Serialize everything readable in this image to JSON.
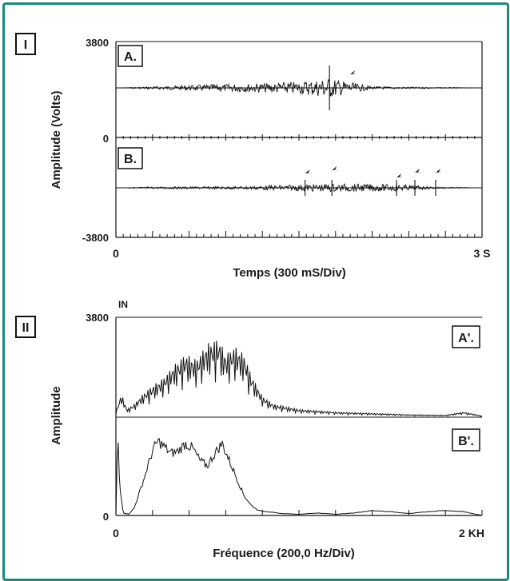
{
  "chart_data": [
    {
      "type": "line",
      "panel": "I",
      "xlabel": "Temps (300 mS/Div)",
      "ylabel": "Amplitude (Volts)",
      "x_ticks": [
        "0",
        "3 S"
      ],
      "xlim": [
        0,
        3
      ],
      "y_ticks": [
        "3800",
        "0",
        "-3800"
      ],
      "ylim": [
        -3800,
        3800
      ],
      "series": [
        {
          "name": "A.",
          "description_points": [
            {
              "t": 0.0,
              "amp": 0
            },
            {
              "t": 0.3,
              "amp": 200
            },
            {
              "t": 0.8,
              "amp": 500
            },
            {
              "t": 1.2,
              "amp": 700
            },
            {
              "t": 1.5,
              "amp": 900
            },
            {
              "t": 1.75,
              "amp": 1500
            },
            {
              "t": 1.9,
              "amp": 900
            },
            {
              "t": 2.1,
              "amp": 200
            },
            {
              "t": 3.0,
              "amp": 0
            }
          ],
          "markers_t": [
            1.92
          ]
        },
        {
          "name": "B.",
          "description_points": [
            {
              "t": 0.0,
              "amp": 0
            },
            {
              "t": 0.3,
              "amp": 150
            },
            {
              "t": 1.0,
              "amp": 200
            },
            {
              "t": 1.75,
              "amp": 600
            },
            {
              "t": 2.3,
              "amp": 500
            },
            {
              "t": 2.6,
              "amp": 150
            },
            {
              "t": 3.0,
              "amp": 0
            }
          ],
          "markers_t": [
            1.55,
            1.77,
            2.3,
            2.45,
            2.62
          ]
        }
      ]
    },
    {
      "type": "line",
      "panel": "II",
      "xlabel": "Fréquence (200,0 Hz/Div)",
      "ylabel": "Amplitude",
      "x_ticks": [
        "0",
        "2 KH"
      ],
      "xlim": [
        0,
        2000
      ],
      "y_ticks": [
        "3800",
        "0"
      ],
      "ylim": [
        0,
        3800
      ],
      "corner_label": "IN",
      "series": [
        {
          "name": "A'.",
          "points": [
            [
              0,
              200
            ],
            [
              30,
              900
            ],
            [
              60,
              300
            ],
            [
              100,
              500
            ],
            [
              150,
              900
            ],
            [
              200,
              1200
            ],
            [
              260,
              1500
            ],
            [
              320,
              2000
            ],
            [
              380,
              2400
            ],
            [
              440,
              2200
            ],
            [
              500,
              2800
            ],
            [
              560,
              3000
            ],
            [
              600,
              2400
            ],
            [
              650,
              2700
            ],
            [
              700,
              2400
            ],
            [
              740,
              1600
            ],
            [
              800,
              800
            ],
            [
              860,
              500
            ],
            [
              1000,
              300
            ],
            [
              1200,
              200
            ],
            [
              1400,
              150
            ],
            [
              1600,
              100
            ],
            [
              1800,
              80
            ],
            [
              1900,
              200
            ],
            [
              2000,
              50
            ]
          ]
        },
        {
          "name": "B'.",
          "points": [
            [
              0,
              0
            ],
            [
              10,
              3400
            ],
            [
              20,
              1200
            ],
            [
              40,
              100
            ],
            [
              70,
              50
            ],
            [
              100,
              300
            ],
            [
              150,
              1400
            ],
            [
              200,
              2600
            ],
            [
              230,
              3000
            ],
            [
              260,
              2800
            ],
            [
              300,
              2500
            ],
            [
              340,
              2600
            ],
            [
              380,
              2900
            ],
            [
              420,
              2700
            ],
            [
              460,
              2200
            ],
            [
              500,
              2000
            ],
            [
              540,
              2500
            ],
            [
              580,
              2900
            ],
            [
              620,
              2200
            ],
            [
              660,
              1500
            ],
            [
              700,
              800
            ],
            [
              740,
              400
            ],
            [
              780,
              200
            ],
            [
              830,
              150
            ],
            [
              900,
              80
            ],
            [
              1000,
              50
            ],
            [
              1100,
              100
            ],
            [
              1200,
              50
            ],
            [
              1300,
              100
            ],
            [
              1400,
              200
            ],
            [
              1500,
              150
            ],
            [
              1600,
              80
            ],
            [
              1700,
              150
            ],
            [
              1800,
              200
            ],
            [
              1900,
              150
            ],
            [
              2000,
              0
            ]
          ]
        }
      ]
    }
  ]
}
